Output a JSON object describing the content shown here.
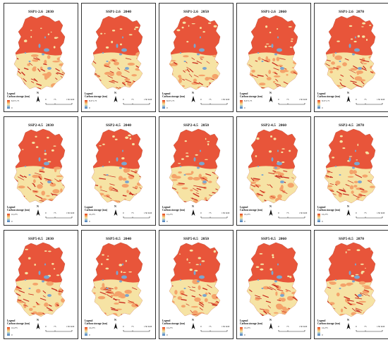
{
  "figure": {
    "columns": 5,
    "panels": [
      {
        "scenario": "SSP1-2.6",
        "year": "2030",
        "legend_max": "8,371.75",
        "legend_min": "0"
      },
      {
        "scenario": "SSP1-2.6",
        "year": "2040",
        "legend_max": "8,371.75",
        "legend_min": "0"
      },
      {
        "scenario": "SSP1-2.6",
        "year": "2050",
        "legend_max": "8,371.75",
        "legend_min": "0"
      },
      {
        "scenario": "SSP1-2.6",
        "year": "2060",
        "legend_max": "8,371.75",
        "legend_min": "0"
      },
      {
        "scenario": "SSP1-2.6",
        "year": "2070",
        "legend_max": "8,371.75",
        "legend_min": "0"
      },
      {
        "scenario": "SSP2-4.5",
        "year": "2030",
        "legend_max": "10,275",
        "legend_min": "0"
      },
      {
        "scenario": "SSP2-4.5",
        "year": "2040",
        "legend_max": "10,275",
        "legend_min": "0"
      },
      {
        "scenario": "SSP2-4.5",
        "year": "2050",
        "legend_max": "10,275",
        "legend_min": "0"
      },
      {
        "scenario": "SSP2-4.5",
        "year": "2060",
        "legend_max": "10,275",
        "legend_min": "0"
      },
      {
        "scenario": "SSP2-4.5",
        "year": "2070",
        "legend_max": "10,275",
        "legend_min": "0"
      },
      {
        "scenario": "SSP5-8.5",
        "year": "2030",
        "legend_max": "10,275",
        "legend_min": "0"
      },
      {
        "scenario": "SSP5-8.5",
        "year": "2040",
        "legend_max": "10,275",
        "legend_min": "0"
      },
      {
        "scenario": "SSP5-8.5",
        "year": "2050",
        "legend_max": "10,275",
        "legend_min": "0"
      },
      {
        "scenario": "SSP5-8.5",
        "year": "2060",
        "legend_max": "10,275",
        "legend_min": "0"
      },
      {
        "scenario": "SSP5-8.5",
        "year": "2070",
        "legend_max": "10,275",
        "legend_min": "0"
      }
    ],
    "legend_title": "Legend",
    "legend_subtitle": "Carbon storage (ton)",
    "north_label": "N",
    "scale_ticks": [
      "0",
      "75",
      "150 KM"
    ],
    "colors": {
      "high": "#e8553a",
      "mid": "#f4a36a",
      "low": "#f6e3a4",
      "water": "#7ba6cf",
      "streak": "#c8281c"
    }
  }
}
